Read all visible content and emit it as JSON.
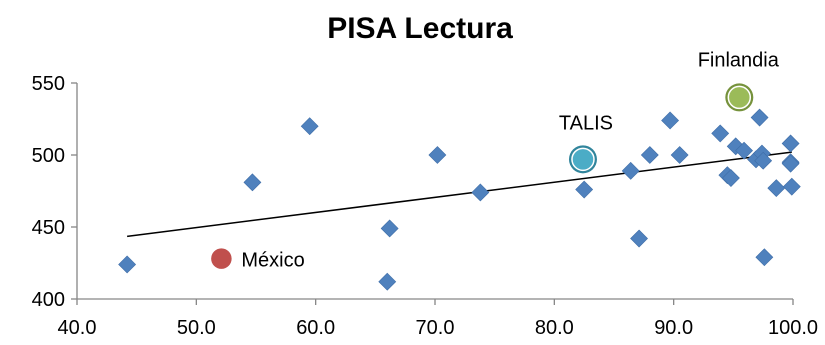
{
  "chart_data": {
    "type": "scatter",
    "title": "PISA Lectura",
    "xlim": [
      40,
      100
    ],
    "ylim": [
      400,
      550
    ],
    "x_ticks": [
      40,
      50,
      60,
      70,
      80,
      90,
      100
    ],
    "x_tick_labels": [
      "40.0",
      "50.0",
      "60.0",
      "70.0",
      "80.0",
      "90.0",
      "100.0"
    ],
    "y_ticks": [
      400,
      450,
      500,
      550
    ],
    "y_tick_labels": [
      "400",
      "450",
      "500",
      "550"
    ],
    "grid": false,
    "legend": "none",
    "series": [
      {
        "marker": "diamond",
        "color": "#4f81bd",
        "points": [
          {
            "x": 44.2,
            "y": 424
          },
          {
            "x": 54.7,
            "y": 481
          },
          {
            "x": 59.5,
            "y": 520
          },
          {
            "x": 66.0,
            "y": 412
          },
          {
            "x": 66.2,
            "y": 449
          },
          {
            "x": 70.2,
            "y": 500
          },
          {
            "x": 73.8,
            "y": 474
          },
          {
            "x": 82.5,
            "y": 476
          },
          {
            "x": 86.4,
            "y": 489
          },
          {
            "x": 87.1,
            "y": 442
          },
          {
            "x": 88.0,
            "y": 500
          },
          {
            "x": 89.7,
            "y": 524
          },
          {
            "x": 90.5,
            "y": 500
          },
          {
            "x": 93.9,
            "y": 515
          },
          {
            "x": 94.5,
            "y": 486
          },
          {
            "x": 94.8,
            "y": 484
          },
          {
            "x": 95.2,
            "y": 506
          },
          {
            "x": 95.9,
            "y": 503
          },
          {
            "x": 96.9,
            "y": 497
          },
          {
            "x": 97.2,
            "y": 526
          },
          {
            "x": 97.4,
            "y": 501
          },
          {
            "x": 97.5,
            "y": 496
          },
          {
            "x": 97.6,
            "y": 429
          },
          {
            "x": 98.6,
            "y": 477
          },
          {
            "x": 99.8,
            "y": 508
          },
          {
            "x": 99.8,
            "y": 495
          },
          {
            "x": 99.8,
            "y": 494
          },
          {
            "x": 99.9,
            "y": 478
          }
        ]
      }
    ],
    "trendline": {
      "type": "linear",
      "color": "#000000",
      "x": [
        44.2,
        99.9
      ],
      "y": [
        443.5,
        502
      ]
    },
    "highlights": [
      {
        "label": "México",
        "x": 52.1,
        "y": 428,
        "fill": "#c0504d",
        "stroke": "#ffffff"
      },
      {
        "label": "TALIS",
        "x": 82.4,
        "y": 497,
        "fill": "#4bacc6",
        "stroke": "#31859c"
      },
      {
        "label": "Finlandia",
        "x": 95.5,
        "y": 540,
        "fill": "#9bbb59",
        "stroke": "#76923c"
      }
    ]
  }
}
